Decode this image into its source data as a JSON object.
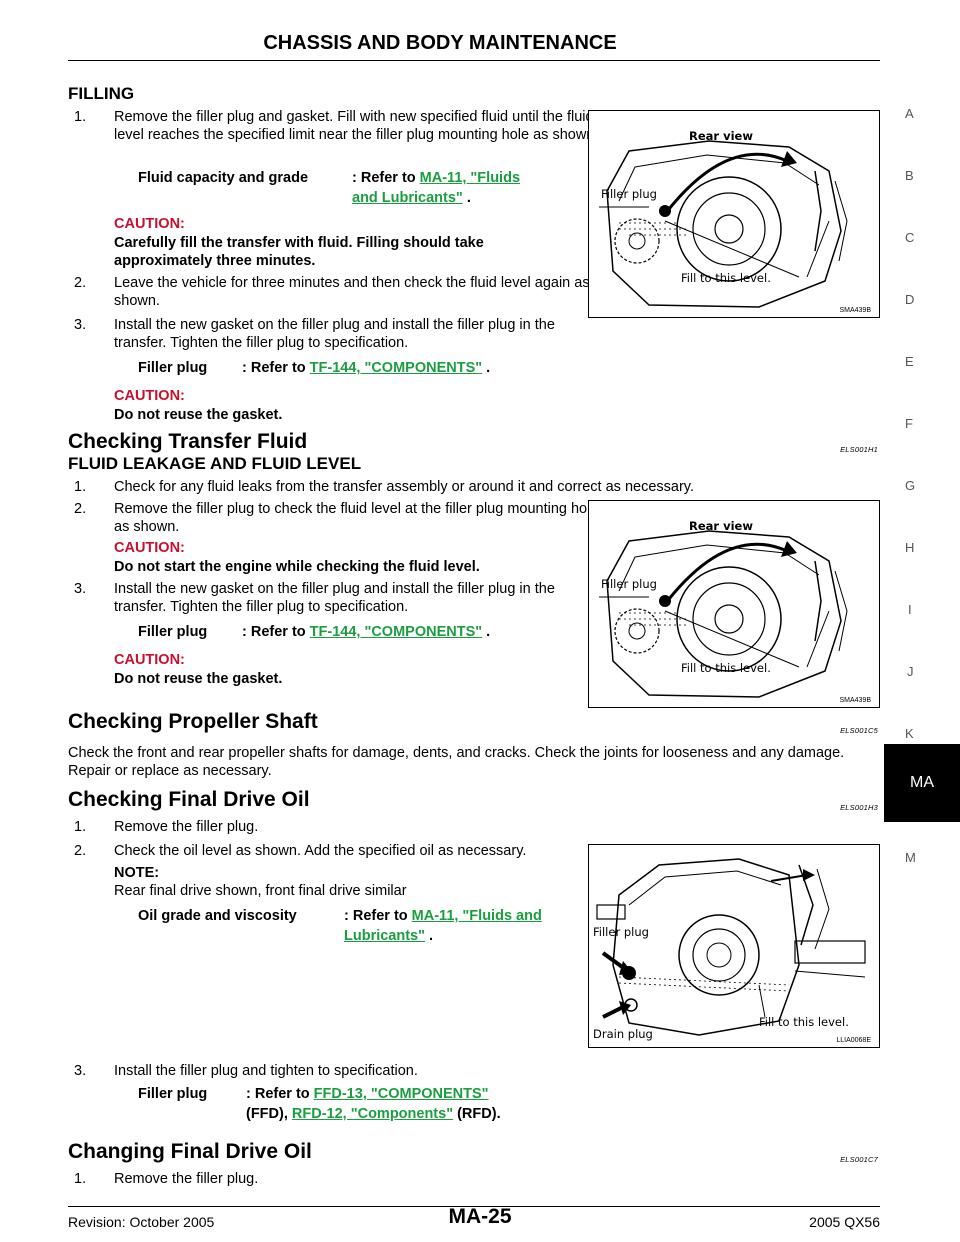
{
  "header": {
    "title": "CHASSIS AND BODY MAINTENANCE"
  },
  "filling": {
    "heading": "FILLING",
    "step1": {
      "num": "1.",
      "text": "Remove the filler plug and gasket. Fill with new specified fluid until the fluid level reaches the specified limit near the filler plug mounting hole as shown."
    },
    "spec1": {
      "label": "Fluid capacity and grade",
      "prefix": ": Refer to ",
      "link_a": "MA-11, \"Fluids ",
      "link_b": "and Lubricants\"",
      "suffix": " ."
    },
    "caution1": {
      "label": "CAUTION:",
      "text": "Carefully fill the transfer with fluid. Filling should take approximately three minutes."
    },
    "step2": {
      "num": "2.",
      "text": "Leave the vehicle for three minutes and then check the fluid level again as shown."
    },
    "step3": {
      "num": "3.",
      "text": "Install the new gasket on the filler plug and install the filler plug in the transfer. Tighten the filler plug to specification."
    },
    "spec2": {
      "label": "Filler plug",
      "prefix": ": Refer to ",
      "link": "TF-144, \"COMPONENTS\"",
      "suffix": " ."
    },
    "caution2": {
      "label": "CAUTION:",
      "text": "Do not reuse the gasket."
    },
    "figure": {
      "title": "Rear view",
      "filler": "Filler plug",
      "level": "Fill to this level.",
      "code": "SMA439B"
    }
  },
  "transfer": {
    "heading": "Checking Transfer Fluid",
    "code": "ELS001H1",
    "subheading": "FLUID LEAKAGE AND FLUID LEVEL",
    "step1": {
      "num": "1.",
      "text": "Check for any fluid leaks from the transfer assembly or around it and correct as necessary."
    },
    "step2": {
      "num": "2.",
      "text": "Remove the filler plug to check the fluid level at the filler plug mounting hole as shown."
    },
    "caution1": {
      "label": "CAUTION:",
      "text": "Do not start the engine while checking the fluid level."
    },
    "step3": {
      "num": "3.",
      "text": "Install the new gasket on the filler plug and install the filler plug in the transfer. Tighten the filler plug to specification."
    },
    "spec": {
      "label": "Filler plug",
      "prefix": ": Refer to ",
      "link": "TF-144, \"COMPONENTS\"",
      "suffix": " ."
    },
    "caution2": {
      "label": "CAUTION:",
      "text": "Do not reuse the gasket."
    },
    "figure": {
      "title": "Rear view",
      "filler": "Filler plug",
      "level": "Fill to this level.",
      "code": "SMA439B"
    }
  },
  "propeller": {
    "heading": "Checking Propeller Shaft",
    "code": "ELS001C5",
    "text": "Check the front and rear propeller shafts for damage, dents, and cracks. Check the joints for looseness and any damage. Repair or replace as necessary."
  },
  "final_drive": {
    "heading": "Checking Final Drive Oil",
    "code": "ELS001H3",
    "step1": {
      "num": "1.",
      "text": "Remove the filler plug."
    },
    "step2": {
      "num": "2.",
      "text": "Check the oil level as shown. Add the specified oil as necessary."
    },
    "note": {
      "label": "NOTE:",
      "text": "Rear final drive shown, front final drive similar"
    },
    "spec1": {
      "label": "Oil grade and viscosity",
      "prefix": ": Refer to ",
      "link_a": "MA-11, \"Fluids and ",
      "link_b": "Lubricants\"",
      "suffix": " ."
    },
    "step3": {
      "num": "3.",
      "text": "Install the filler plug and tighten to specification."
    },
    "spec2": {
      "label": "Filler plug",
      "prefix": ": Refer to ",
      "link_a": "FFD-13, \"COMPONENTS\"",
      "mid": "(FFD), ",
      "link_b": "RFD-12, \"Components\"",
      "suffix": " (RFD)."
    },
    "figure": {
      "filler": "Filler plug",
      "level": "Fill to this level.",
      "drain": "Drain plug",
      "code": "LLIA0068E"
    }
  },
  "changing": {
    "heading": "Changing Final Drive Oil",
    "code": "ELS001C7",
    "step1": {
      "num": "1.",
      "text": "Remove the filler plug."
    }
  },
  "side_tabs": [
    "A",
    "B",
    "C",
    "D",
    "E",
    "F",
    "G",
    "H",
    "I",
    "J",
    "K",
    "MA",
    "M"
  ],
  "footer": {
    "revision": "Revision: October 2005",
    "page": "MA-25",
    "model": "2005 QX56"
  }
}
